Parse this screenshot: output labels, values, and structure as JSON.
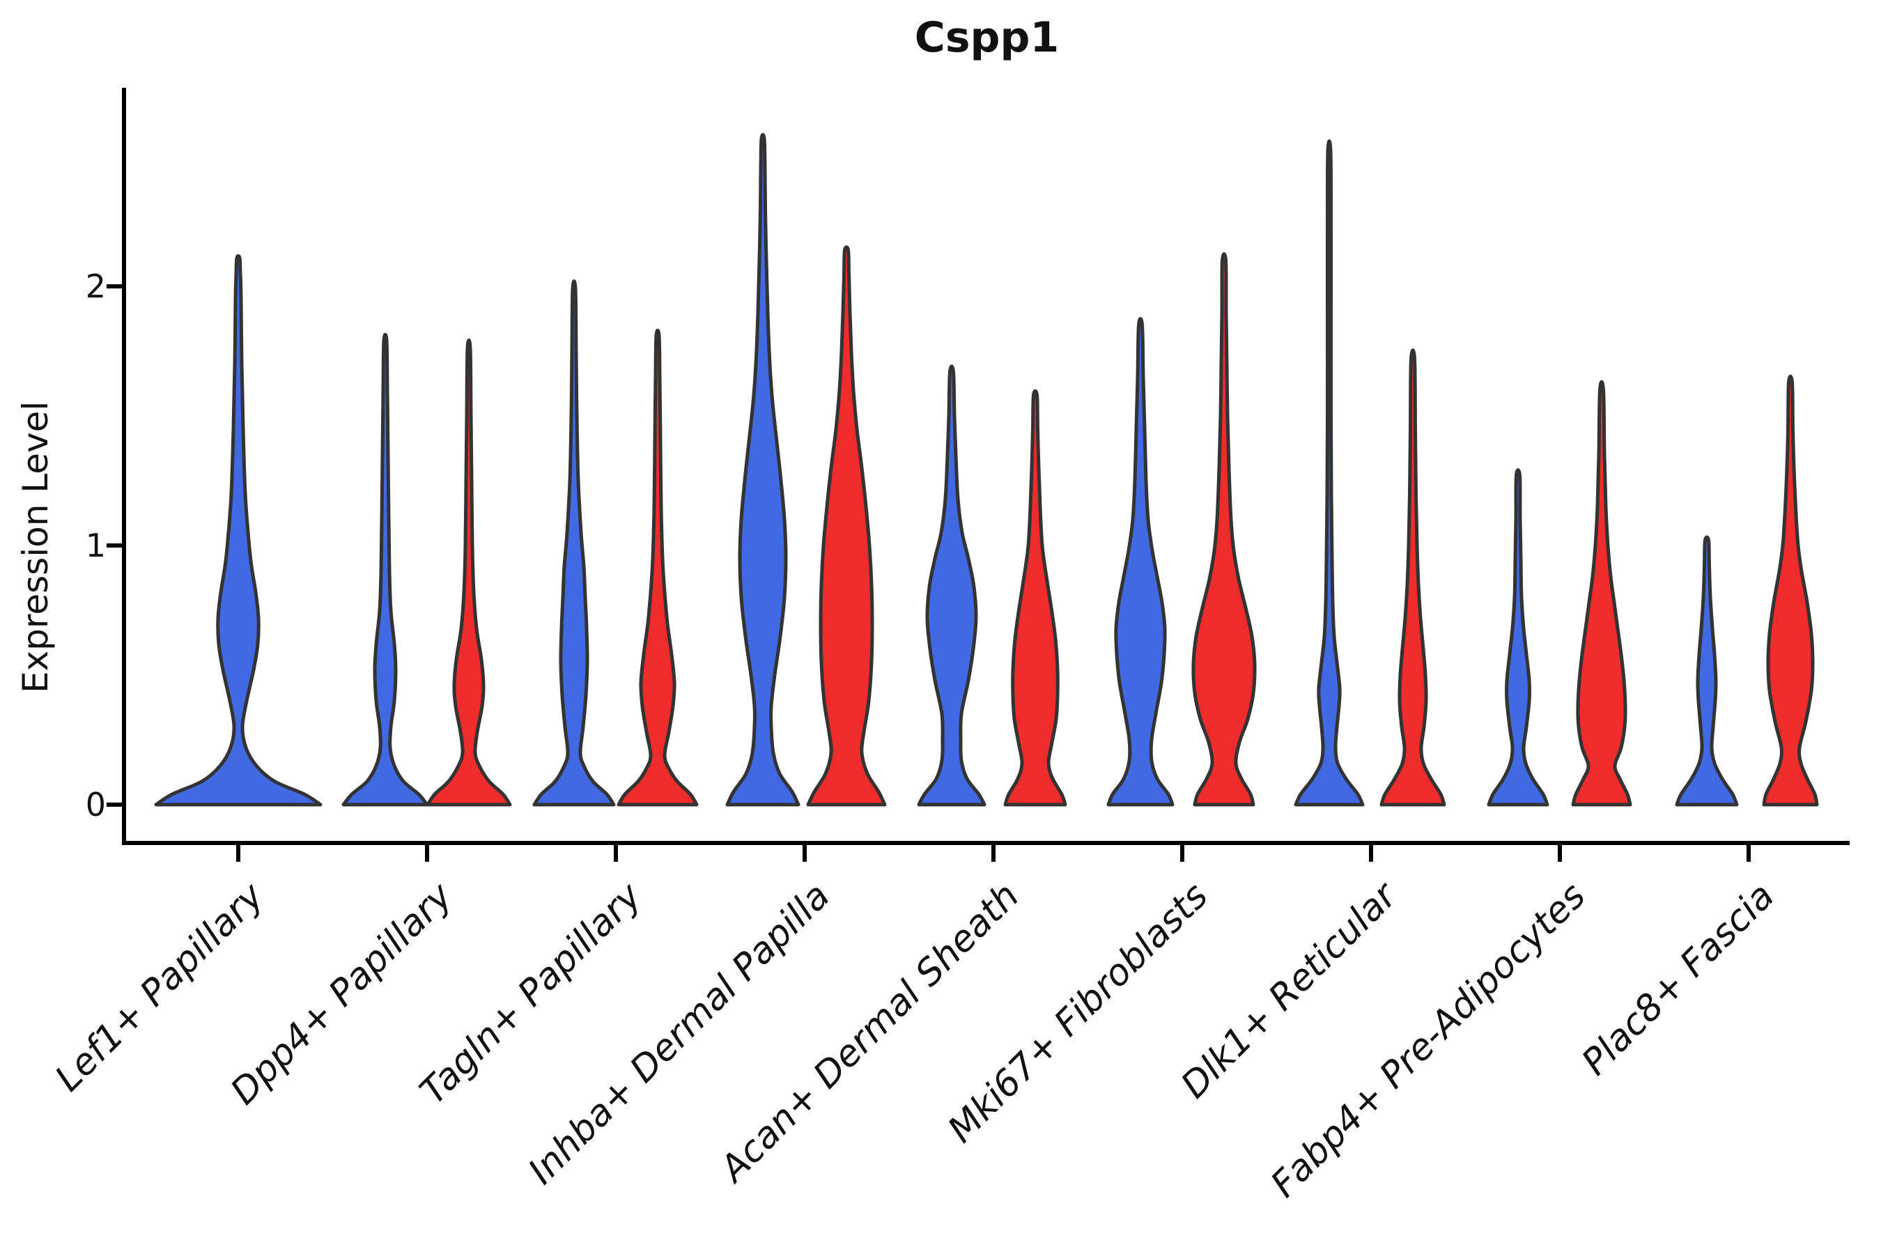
{
  "title": "Cspp1",
  "axes": {
    "ylabel": "Expression Level",
    "ytick_labels": [
      "0",
      "1",
      "2"
    ]
  },
  "colors": {
    "blue_fill": "#4169E1",
    "red_fill": "#EE2C2C",
    "outline": "#333333",
    "axis": "#000000",
    "background": "#ffffff"
  },
  "chart_data": {
    "type": "violin",
    "title": "Cspp1",
    "ylabel": "Expression Level",
    "yticks": [
      0,
      1,
      2
    ],
    "ylim": [
      -0.15,
      2.76
    ],
    "grid": false,
    "legend": "none (split colors only)",
    "split_series": [
      "blue",
      "red"
    ],
    "categories": [
      "Lef1+ Papillary",
      "Dpp4+ Papillary",
      "Tagln+ Papillary",
      "Inhba+ Dermal Papilla",
      "Acan+ Dermal Sheath",
      "Mki67+ Fibroblasts",
      "Dlk1+ Reticular",
      "Fabp4+ Pre-Adipocytes",
      "Plac8+ Fascia"
    ],
    "violins": [
      {
        "category": "Lef1+ Papillary",
        "series": "blue",
        "color": "#4169E1",
        "peak_expression": 2.11,
        "density_profile": [
          [
            0,
            118
          ],
          [
            0.04,
            95
          ],
          [
            0.09,
            52
          ],
          [
            0.15,
            26
          ],
          [
            0.22,
            11
          ],
          [
            0.3,
            6
          ],
          [
            0.4,
            12
          ],
          [
            0.52,
            22
          ],
          [
            0.62,
            28
          ],
          [
            0.72,
            29
          ],
          [
            0.82,
            25
          ],
          [
            0.92,
            19
          ],
          [
            1.02,
            15
          ],
          [
            1.2,
            10
          ],
          [
            1.45,
            7
          ],
          [
            1.7,
            5
          ],
          [
            1.95,
            4
          ],
          [
            2.05,
            3
          ],
          [
            2.11,
            2
          ]
        ]
      },
      {
        "category": "Dpp4+ Papillary",
        "series": "blue",
        "color": "#4169E1",
        "peak_expression": 1.79,
        "density_profile": [
          [
            0,
            60
          ],
          [
            0.04,
            48
          ],
          [
            0.09,
            26
          ],
          [
            0.15,
            13
          ],
          [
            0.22,
            7
          ],
          [
            0.3,
            8
          ],
          [
            0.4,
            13
          ],
          [
            0.52,
            15
          ],
          [
            0.62,
            13
          ],
          [
            0.75,
            8
          ],
          [
            0.9,
            6
          ],
          [
            1.1,
            5
          ],
          [
            1.35,
            4
          ],
          [
            1.6,
            3
          ],
          [
            1.79,
            2
          ]
        ]
      },
      {
        "category": "Dpp4+ Papillary",
        "series": "red",
        "color": "#EE2C2C",
        "peak_expression": 1.76,
        "density_profile": [
          [
            0,
            59
          ],
          [
            0.04,
            49
          ],
          [
            0.09,
            29
          ],
          [
            0.15,
            15
          ],
          [
            0.2,
            9
          ],
          [
            0.28,
            12
          ],
          [
            0.38,
            19
          ],
          [
            0.46,
            21
          ],
          [
            0.56,
            18
          ],
          [
            0.68,
            11
          ],
          [
            0.82,
            7
          ],
          [
            1.0,
            5
          ],
          [
            1.25,
            4
          ],
          [
            1.5,
            3
          ],
          [
            1.76,
            2
          ]
        ]
      },
      {
        "category": "Tagln+ Papillary",
        "series": "blue",
        "color": "#4169E1",
        "peak_expression": 1.99,
        "density_profile": [
          [
            0,
            57
          ],
          [
            0.04,
            47
          ],
          [
            0.09,
            27
          ],
          [
            0.15,
            14
          ],
          [
            0.2,
            9
          ],
          [
            0.3,
            13
          ],
          [
            0.42,
            17
          ],
          [
            0.55,
            19
          ],
          [
            0.68,
            18
          ],
          [
            0.8,
            16
          ],
          [
            0.92,
            14
          ],
          [
            1.05,
            10
          ],
          [
            1.25,
            6
          ],
          [
            1.5,
            4
          ],
          [
            1.75,
            3
          ],
          [
            1.99,
            2
          ]
        ]
      },
      {
        "category": "Tagln+ Papillary",
        "series": "red",
        "color": "#EE2C2C",
        "peak_expression": 1.81,
        "density_profile": [
          [
            0,
            56
          ],
          [
            0.04,
            47
          ],
          [
            0.09,
            28
          ],
          [
            0.14,
            16
          ],
          [
            0.19,
            10
          ],
          [
            0.28,
            16
          ],
          [
            0.38,
            22
          ],
          [
            0.47,
            24
          ],
          [
            0.58,
            20
          ],
          [
            0.7,
            14
          ],
          [
            0.82,
            10
          ],
          [
            0.95,
            7
          ],
          [
            1.15,
            5
          ],
          [
            1.4,
            4
          ],
          [
            1.65,
            3
          ],
          [
            1.81,
            2
          ]
        ]
      },
      {
        "category": "Inhba+ Dermal Papilla",
        "series": "blue",
        "color": "#4169E1",
        "peak_expression": 2.57,
        "density_profile": [
          [
            0,
            51
          ],
          [
            0.05,
            42
          ],
          [
            0.12,
            24
          ],
          [
            0.2,
            15
          ],
          [
            0.3,
            12
          ],
          [
            0.38,
            12
          ],
          [
            0.5,
            17
          ],
          [
            0.65,
            25
          ],
          [
            0.8,
            31
          ],
          [
            0.95,
            33
          ],
          [
            1.1,
            31
          ],
          [
            1.25,
            26
          ],
          [
            1.4,
            20
          ],
          [
            1.55,
            14
          ],
          [
            1.7,
            10
          ],
          [
            1.9,
            7
          ],
          [
            2.1,
            5
          ],
          [
            2.3,
            3.5
          ],
          [
            2.45,
            3
          ],
          [
            2.57,
            2
          ]
        ]
      },
      {
        "category": "Inhba+ Dermal Papilla",
        "series": "red",
        "color": "#EE2C2C",
        "peak_expression": 2.14,
        "density_profile": [
          [
            0,
            55
          ],
          [
            0.05,
            46
          ],
          [
            0.12,
            30
          ],
          [
            0.2,
            22
          ],
          [
            0.28,
            25
          ],
          [
            0.4,
            32
          ],
          [
            0.55,
            36
          ],
          [
            0.7,
            37
          ],
          [
            0.85,
            36
          ],
          [
            1.0,
            33
          ],
          [
            1.15,
            28
          ],
          [
            1.3,
            22
          ],
          [
            1.45,
            15
          ],
          [
            1.6,
            10
          ],
          [
            1.75,
            7
          ],
          [
            1.9,
            5
          ],
          [
            2.05,
            3.5
          ],
          [
            2.14,
            2.5
          ]
        ]
      },
      {
        "category": "Acan+ Dermal Sheath",
        "series": "blue",
        "color": "#4169E1",
        "peak_expression": 1.67,
        "density_profile": [
          [
            0,
            47
          ],
          [
            0.04,
            39
          ],
          [
            0.1,
            22
          ],
          [
            0.17,
            14
          ],
          [
            0.25,
            13
          ],
          [
            0.35,
            14
          ],
          [
            0.48,
            24
          ],
          [
            0.6,
            31
          ],
          [
            0.72,
            35
          ],
          [
            0.84,
            32
          ],
          [
            0.95,
            24
          ],
          [
            1.05,
            15
          ],
          [
            1.18,
            9
          ],
          [
            1.35,
            6
          ],
          [
            1.5,
            4
          ],
          [
            1.67,
            2.5
          ]
        ]
      },
      {
        "category": "Acan+ Dermal Sheath",
        "series": "red",
        "color": "#EE2C2C",
        "peak_expression": 1.58,
        "density_profile": [
          [
            0,
            43
          ],
          [
            0.04,
            38
          ],
          [
            0.1,
            25
          ],
          [
            0.16,
            19
          ],
          [
            0.24,
            24
          ],
          [
            0.33,
            30
          ],
          [
            0.42,
            32
          ],
          [
            0.52,
            32
          ],
          [
            0.64,
            29
          ],
          [
            0.76,
            23
          ],
          [
            0.88,
            16
          ],
          [
            1.0,
            10
          ],
          [
            1.15,
            7
          ],
          [
            1.3,
            5
          ],
          [
            1.45,
            3.5
          ],
          [
            1.58,
            2.5
          ]
        ]
      },
      {
        "category": "Mki67+ Fibroblasts",
        "series": "blue",
        "color": "#4169E1",
        "peak_expression": 1.85,
        "density_profile": [
          [
            0,
            46
          ],
          [
            0.04,
            40
          ],
          [
            0.1,
            24
          ],
          [
            0.17,
            16
          ],
          [
            0.25,
            16
          ],
          [
            0.35,
            22
          ],
          [
            0.47,
            30
          ],
          [
            0.58,
            34
          ],
          [
            0.68,
            35
          ],
          [
            0.78,
            31
          ],
          [
            0.88,
            24
          ],
          [
            0.98,
            17
          ],
          [
            1.1,
            11
          ],
          [
            1.25,
            8
          ],
          [
            1.45,
            6
          ],
          [
            1.65,
            4
          ],
          [
            1.85,
            2.5
          ]
        ]
      },
      {
        "category": "Mki67+ Fibroblasts",
        "series": "red",
        "color": "#EE2C2C",
        "peak_expression": 2.1,
        "density_profile": [
          [
            0,
            42
          ],
          [
            0.04,
            38
          ],
          [
            0.1,
            25
          ],
          [
            0.16,
            17
          ],
          [
            0.24,
            22
          ],
          [
            0.33,
            34
          ],
          [
            0.43,
            42
          ],
          [
            0.54,
            44
          ],
          [
            0.65,
            40
          ],
          [
            0.76,
            31
          ],
          [
            0.87,
            21
          ],
          [
            0.98,
            14
          ],
          [
            1.1,
            10
          ],
          [
            1.3,
            7
          ],
          [
            1.5,
            5
          ],
          [
            1.7,
            4
          ],
          [
            1.9,
            3
          ],
          [
            2.1,
            2.5
          ]
        ]
      },
      {
        "category": "Dlk1+ Reticular",
        "series": "blue",
        "color": "#4169E1",
        "peak_expression": 2.52,
        "density_profile": [
          [
            0,
            48
          ],
          [
            0.04,
            41
          ],
          [
            0.1,
            24
          ],
          [
            0.16,
            12
          ],
          [
            0.22,
            9
          ],
          [
            0.3,
            11
          ],
          [
            0.38,
            14
          ],
          [
            0.45,
            15
          ],
          [
            0.55,
            11
          ],
          [
            0.65,
            7
          ],
          [
            0.78,
            5
          ],
          [
            0.95,
            4
          ],
          [
            1.2,
            3
          ],
          [
            1.5,
            2.5
          ],
          [
            1.9,
            2.5
          ],
          [
            2.2,
            2.5
          ],
          [
            2.52,
            2
          ]
        ]
      },
      {
        "category": "Dlk1+ Reticular",
        "series": "red",
        "color": "#EE2C2C",
        "peak_expression": 1.72,
        "density_profile": [
          [
            0,
            45
          ],
          [
            0.04,
            40
          ],
          [
            0.1,
            26
          ],
          [
            0.16,
            15
          ],
          [
            0.22,
            12
          ],
          [
            0.3,
            16
          ],
          [
            0.4,
            19
          ],
          [
            0.5,
            18
          ],
          [
            0.6,
            15
          ],
          [
            0.72,
            11
          ],
          [
            0.85,
            8
          ],
          [
            1.0,
            6
          ],
          [
            1.2,
            4.5
          ],
          [
            1.45,
            3.5
          ],
          [
            1.72,
            2.5
          ]
        ]
      },
      {
        "category": "Fabp4+ Pre-Adipocytes",
        "series": "blue",
        "color": "#4169E1",
        "peak_expression": 1.27,
        "density_profile": [
          [
            0,
            42
          ],
          [
            0.04,
            36
          ],
          [
            0.1,
            21
          ],
          [
            0.16,
            11
          ],
          [
            0.22,
            8
          ],
          [
            0.3,
            12
          ],
          [
            0.4,
            16
          ],
          [
            0.48,
            16
          ],
          [
            0.58,
            12
          ],
          [
            0.68,
            8
          ],
          [
            0.8,
            5
          ],
          [
            0.95,
            4
          ],
          [
            1.1,
            3
          ],
          [
            1.27,
            2.5
          ]
        ]
      },
      {
        "category": "Fabp4+ Pre-Adipocytes",
        "series": "red",
        "color": "#EE2C2C",
        "peak_expression": 1.6,
        "density_profile": [
          [
            0,
            41
          ],
          [
            0.04,
            37
          ],
          [
            0.1,
            26
          ],
          [
            0.15,
            19
          ],
          [
            0.22,
            28
          ],
          [
            0.3,
            33
          ],
          [
            0.38,
            34
          ],
          [
            0.48,
            32
          ],
          [
            0.58,
            28
          ],
          [
            0.68,
            23
          ],
          [
            0.78,
            18
          ],
          [
            0.88,
            13
          ],
          [
            1.0,
            9
          ],
          [
            1.15,
            6
          ],
          [
            1.35,
            4
          ],
          [
            1.6,
            2.5
          ]
        ]
      },
      {
        "category": "Plac8+ Fascia",
        "series": "blue",
        "color": "#4169E1",
        "peak_expression": 1.02,
        "density_profile": [
          [
            0,
            43
          ],
          [
            0.04,
            37
          ],
          [
            0.1,
            22
          ],
          [
            0.16,
            11
          ],
          [
            0.22,
            7
          ],
          [
            0.3,
            9
          ],
          [
            0.4,
            12
          ],
          [
            0.48,
            13
          ],
          [
            0.58,
            11
          ],
          [
            0.68,
            8
          ],
          [
            0.8,
            5
          ],
          [
            0.92,
            3.5
          ],
          [
            1.02,
            2.5
          ]
        ]
      },
      {
        "category": "Plac8+ Fascia",
        "series": "red",
        "color": "#EE2C2C",
        "peak_expression": 1.63,
        "density_profile": [
          [
            0,
            38
          ],
          [
            0.04,
            35
          ],
          [
            0.1,
            24
          ],
          [
            0.16,
            15
          ],
          [
            0.22,
            13
          ],
          [
            0.32,
            22
          ],
          [
            0.44,
            30
          ],
          [
            0.55,
            32
          ],
          [
            0.66,
            30
          ],
          [
            0.78,
            24
          ],
          [
            0.9,
            16
          ],
          [
            1.0,
            11
          ],
          [
            1.12,
            8
          ],
          [
            1.3,
            5
          ],
          [
            1.45,
            3.5
          ],
          [
            1.63,
            2.5
          ]
        ]
      }
    ]
  }
}
